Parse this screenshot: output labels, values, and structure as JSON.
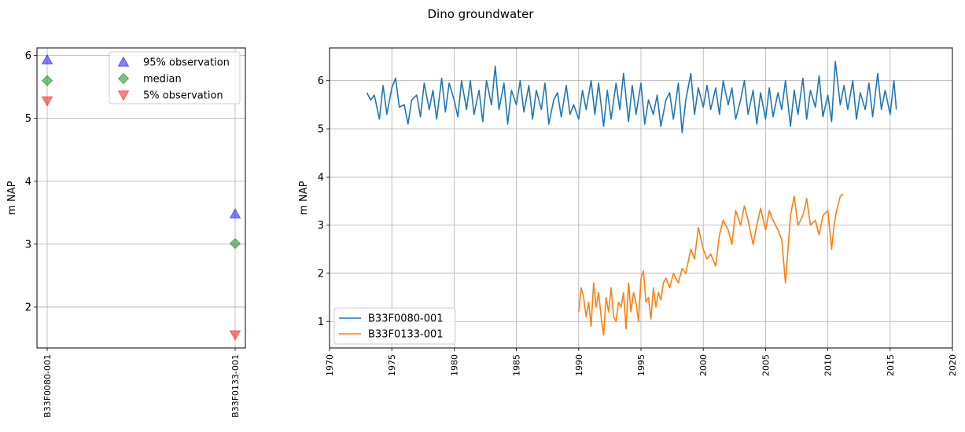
{
  "figure": {
    "suptitle": "Dino groundwater"
  },
  "chart_data": [
    {
      "type": "scatter",
      "ylabel": "m NAP",
      "categories": [
        "B33F0080-001",
        "B33F0133-001"
      ],
      "ylim": [
        1.35,
        6.12
      ],
      "yticks": [
        2,
        3,
        4,
        5,
        6
      ],
      "grid": true,
      "legend_position": "top-right",
      "series": [
        {
          "name": "95% observation",
          "marker": "triangle-up",
          "color": "#0000ff",
          "values": [
            5.93,
            3.48
          ]
        },
        {
          "name": "median",
          "marker": "diamond",
          "color": "#008000",
          "values": [
            5.6,
            3.01
          ]
        },
        {
          "name": "5% observation",
          "marker": "triangle-down",
          "color": "#ff0000",
          "values": [
            5.28,
            1.56
          ]
        }
      ]
    },
    {
      "type": "line",
      "ylabel": "m NAP",
      "xlim": [
        1970,
        2020
      ],
      "xticks": [
        1970,
        1975,
        1980,
        1985,
        1990,
        1995,
        2000,
        2005,
        2010,
        2015,
        2020
      ],
      "ylim": [
        0.45,
        6.68
      ],
      "yticks": [
        1,
        2,
        3,
        4,
        5,
        6
      ],
      "grid": true,
      "legend_position": "bottom-left",
      "series": [
        {
          "name": "B33F0080-001",
          "color": "#1f77b4",
          "x": [
            1973.0,
            1973.3,
            1973.6,
            1974.0,
            1974.3,
            1974.6,
            1975.0,
            1975.3,
            1975.6,
            1976.0,
            1976.3,
            1976.6,
            1977.0,
            1977.3,
            1977.6,
            1978.0,
            1978.3,
            1978.6,
            1979.0,
            1979.3,
            1979.6,
            1980.0,
            1980.3,
            1980.6,
            1981.0,
            1981.3,
            1981.6,
            1982.0,
            1982.3,
            1982.6,
            1983.0,
            1983.3,
            1983.6,
            1984.0,
            1984.3,
            1984.6,
            1985.0,
            1985.3,
            1985.6,
            1986.0,
            1986.3,
            1986.6,
            1987.0,
            1987.3,
            1987.6,
            1988.0,
            1988.3,
            1988.6,
            1989.0,
            1989.3,
            1989.6,
            1990.0,
            1990.3,
            1990.6,
            1991.0,
            1991.3,
            1991.6,
            1992.0,
            1992.3,
            1992.6,
            1993.0,
            1993.3,
            1993.6,
            1994.0,
            1994.3,
            1994.6,
            1995.0,
            1995.3,
            1995.6,
            1996.0,
            1996.3,
            1996.6,
            1997.0,
            1997.3,
            1997.6,
            1998.0,
            1998.3,
            1998.6,
            1999.0,
            1999.3,
            1999.6,
            2000.0,
            2000.3,
            2000.6,
            2001.0,
            2001.3,
            2001.6,
            2002.0,
            2002.3,
            2002.6,
            2003.0,
            2003.3,
            2003.6,
            2004.0,
            2004.3,
            2004.6,
            2005.0,
            2005.3,
            2005.6,
            2006.0,
            2006.3,
            2006.6,
            2007.0,
            2007.3,
            2007.6,
            2008.0,
            2008.3,
            2008.6,
            2009.0,
            2009.3,
            2009.6,
            2010.0,
            2010.3,
            2010.6,
            2011.0,
            2011.3,
            2011.6,
            2012.0,
            2012.3,
            2012.6,
            2013.0,
            2013.3,
            2013.6,
            2014.0,
            2014.3,
            2014.6,
            2015.0,
            2015.3,
            2015.5
          ],
          "y": [
            5.75,
            5.6,
            5.7,
            5.2,
            5.9,
            5.3,
            5.85,
            6.05,
            5.45,
            5.5,
            5.1,
            5.6,
            5.7,
            5.25,
            5.95,
            5.4,
            5.8,
            5.2,
            6.05,
            5.35,
            5.95,
            5.6,
            5.25,
            6.0,
            5.4,
            6.0,
            5.3,
            5.8,
            5.15,
            6.0,
            5.5,
            6.3,
            5.4,
            5.95,
            5.1,
            5.8,
            5.5,
            6.0,
            5.35,
            5.9,
            5.2,
            5.8,
            5.4,
            5.95,
            5.1,
            5.6,
            5.75,
            5.25,
            5.9,
            5.3,
            5.5,
            5.2,
            5.8,
            5.4,
            6.0,
            5.3,
            5.95,
            5.05,
            5.8,
            5.2,
            5.95,
            5.4,
            6.15,
            5.15,
            5.9,
            5.3,
            5.95,
            5.1,
            5.6,
            5.3,
            5.7,
            5.05,
            5.6,
            5.75,
            5.2,
            5.95,
            4.92,
            5.6,
            6.15,
            5.3,
            5.85,
            5.45,
            5.9,
            5.4,
            5.85,
            5.3,
            6.0,
            5.5,
            5.85,
            5.2,
            5.6,
            6.0,
            5.3,
            5.8,
            5.1,
            5.75,
            5.2,
            5.85,
            5.25,
            5.75,
            5.4,
            6.0,
            5.05,
            5.8,
            5.3,
            6.05,
            5.2,
            5.8,
            5.45,
            6.1,
            5.25,
            5.7,
            5.15,
            6.4,
            5.5,
            5.9,
            5.4,
            6.0,
            5.2,
            5.75,
            5.4,
            5.95,
            5.25,
            6.15,
            5.4,
            5.8,
            5.3,
            6.0,
            5.4
          ]
        },
        {
          "name": "B33F0133-001",
          "color": "#ff7f0e",
          "x": [
            1990.0,
            1990.2,
            1990.4,
            1990.6,
            1990.8,
            1991.0,
            1991.2,
            1991.4,
            1991.6,
            1991.8,
            1992.0,
            1992.2,
            1992.4,
            1992.6,
            1992.8,
            1993.0,
            1993.2,
            1993.4,
            1993.6,
            1993.8,
            1994.0,
            1994.2,
            1994.4,
            1994.6,
            1994.8,
            1995.0,
            1995.2,
            1995.4,
            1995.6,
            1995.8,
            1996.0,
            1996.2,
            1996.4,
            1996.6,
            1996.8,
            1997.0,
            1997.3,
            1997.6,
            1998.0,
            1998.3,
            1998.6,
            1999.0,
            1999.3,
            1999.6,
            2000.0,
            2000.3,
            2000.6,
            2001.0,
            2001.3,
            2001.6,
            2002.0,
            2002.3,
            2002.6,
            2003.0,
            2003.3,
            2003.6,
            2004.0,
            2004.3,
            2004.6,
            2005.0,
            2005.3,
            2005.6,
            2006.0,
            2006.3,
            2006.6,
            2007.0,
            2007.3,
            2007.6,
            2008.0,
            2008.3,
            2008.6,
            2009.0,
            2009.3,
            2009.6,
            2010.0,
            2010.3,
            2010.5,
            2010.7,
            2011.0,
            2011.2
          ],
          "y": [
            1.2,
            1.7,
            1.5,
            1.1,
            1.4,
            0.9,
            1.8,
            1.3,
            1.6,
            1.1,
            0.72,
            1.5,
            1.2,
            1.7,
            1.1,
            1.0,
            1.4,
            1.3,
            1.6,
            0.85,
            1.8,
            1.2,
            1.6,
            1.4,
            1.0,
            1.9,
            2.05,
            1.4,
            1.5,
            1.05,
            1.7,
            1.3,
            1.6,
            1.45,
            1.8,
            1.9,
            1.7,
            2.0,
            1.8,
            2.1,
            2.0,
            2.5,
            2.3,
            2.95,
            2.5,
            2.3,
            2.4,
            2.15,
            2.8,
            3.1,
            2.9,
            2.6,
            3.3,
            3.0,
            3.4,
            3.1,
            2.6,
            3.0,
            3.35,
            2.9,
            3.3,
            3.1,
            2.9,
            2.7,
            1.8,
            3.2,
            3.6,
            3.0,
            3.2,
            3.55,
            3.0,
            3.1,
            2.8,
            3.2,
            3.3,
            2.5,
            3.0,
            3.3,
            3.6,
            3.65
          ]
        }
      ]
    }
  ]
}
